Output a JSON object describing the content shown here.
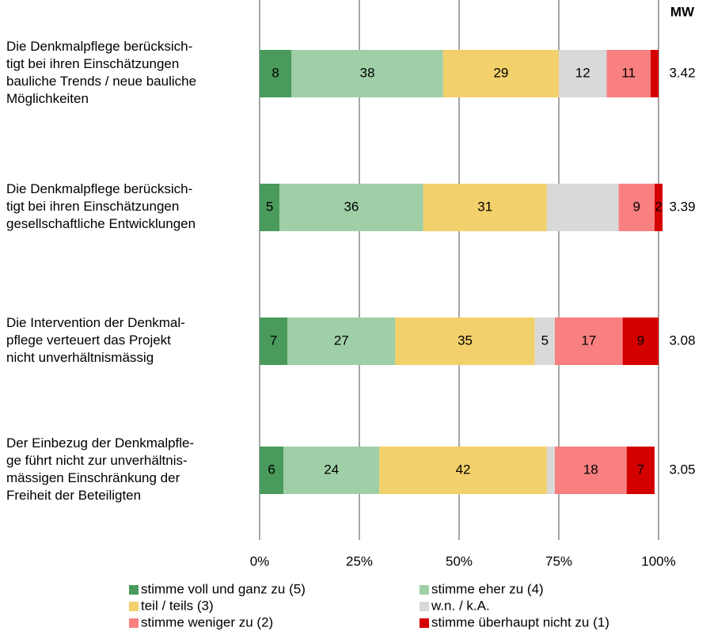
{
  "chart_data": {
    "type": "stacked-bar-horizontal",
    "categories": [
      "Die Denkmalpflege berücksich-\ntigt bei ihren Einschätzungen\nbauliche Trends / neue bauliche\nMöglichkeiten",
      "Die Denkmalpflege berücksich-\ntigt bei ihren Einschätzungen\ngesellschaftliche Entwicklungen",
      "Die Intervention der Denkmal-\npflege verteuert das Projekt\nnicht unverhältnismässig",
      "Der Einbezug der Denkmalpfle-\nge führt nicht zur unverhältnis-\nmässigen Einschränkung der\nFreiheit der Beteiligten"
    ],
    "series": [
      {
        "name": "stimme voll und ganz zu (5)",
        "color": "#4a9a5c",
        "values": [
          8,
          5,
          7,
          6
        ],
        "value_labels": [
          "8",
          "5",
          "7",
          "6"
        ]
      },
      {
        "name": "stimme eher zu (4)",
        "color": "#9fcfa6",
        "values": [
          38,
          36,
          27,
          24
        ],
        "value_labels": [
          "38",
          "36",
          "27",
          "24"
        ]
      },
      {
        "name": "teil / teils (3)",
        "color": "#f2d06b",
        "values": [
          29,
          31,
          35,
          42
        ],
        "value_labels": [
          "29",
          "31",
          "35",
          "42"
        ]
      },
      {
        "name": "w.n. / k.A.",
        "color": "#d9d9d9",
        "values": [
          12,
          18,
          5,
          2
        ],
        "value_labels": [
          "12",
          null,
          "5",
          null
        ]
      },
      {
        "name": "stimme weniger zu (2)",
        "color": "#f98080",
        "values": [
          11,
          9,
          17,
          18
        ],
        "value_labels": [
          "11",
          "9",
          "17",
          "18"
        ]
      },
      {
        "name": "stimme überhaupt nicht zu (1)",
        "color": "#d40000",
        "values": [
          2,
          2,
          9,
          7
        ],
        "value_labels": [
          null,
          "2",
          "9",
          "7"
        ]
      }
    ],
    "mean_header": "MW",
    "mean_values": [
      "3.42",
      "3.39",
      "3.08",
      "3.05"
    ],
    "xlim": [
      0,
      100
    ],
    "xticks": [
      {
        "value": 0,
        "label": "0%"
      },
      {
        "value": 25,
        "label": "25%"
      },
      {
        "value": 50,
        "label": "50%"
      },
      {
        "value": 75,
        "label": "75%"
      },
      {
        "value": 100,
        "label": "100%"
      }
    ],
    "grid": true
  }
}
